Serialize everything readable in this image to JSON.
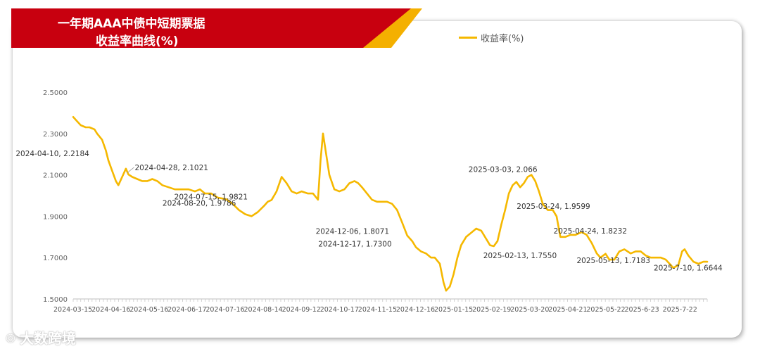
{
  "title_lines": [
    "一年期AAA中债中短期票据",
    "收益率曲线(%)"
  ],
  "watermark": {
    "icon": "logo-mark",
    "text": "大数跨境"
  },
  "colors": {
    "banner_red": "#c8000f",
    "banner_yellow": "#f4b000",
    "line": "#f5b800"
  },
  "chart_data": {
    "type": "line",
    "title": "一年期AAA中债中短期票据收益率曲线(%)",
    "ylim": [
      1.5,
      2.5
    ],
    "yticks": [
      2.5,
      2.3,
      2.1,
      1.9,
      1.7,
      1.5
    ],
    "ytick_labels": [
      "2.5000",
      "2.3000",
      "2.1000",
      "1.9000",
      "1.7000",
      "1.5000"
    ],
    "x_tick_labels": [
      "2024-03-15",
      "2024-04-16",
      "2024-05-16",
      "2024-06-17",
      "2024-07-16",
      "2024-08-14",
      "2024-09-12",
      "2024-10-17",
      "2024-11-15",
      "2024-12-16",
      "2025-01-15",
      "2025-02-19",
      "2025-03-20",
      "2025-04-21",
      "2025-05-22",
      "2025-6-23",
      "2025-7-22"
    ],
    "grid": false,
    "legend_position": "top-right",
    "series": [
      {
        "name": "收益率(%)",
        "points": [
          [
            "2024-03-15",
            2.38
          ],
          [
            "2024-03-18",
            2.36
          ],
          [
            "2024-03-21",
            2.34
          ],
          [
            "2024-03-25",
            2.33
          ],
          [
            "2024-03-28",
            2.33
          ],
          [
            "2024-04-01",
            2.32
          ],
          [
            "2024-04-03",
            2.3
          ],
          [
            "2024-04-07",
            2.27
          ],
          [
            "2024-04-10",
            2.2184
          ],
          [
            "2024-04-12",
            2.17
          ],
          [
            "2024-04-15",
            2.12
          ],
          [
            "2024-04-18",
            2.07
          ],
          [
            "2024-04-20",
            2.05
          ],
          [
            "2024-04-23",
            2.09
          ],
          [
            "2024-04-26",
            2.13
          ],
          [
            "2024-04-28",
            2.1021
          ],
          [
            "2024-05-01",
            2.09
          ],
          [
            "2024-05-05",
            2.08
          ],
          [
            "2024-05-09",
            2.07
          ],
          [
            "2024-05-13",
            2.07
          ],
          [
            "2024-05-17",
            2.08
          ],
          [
            "2024-05-21",
            2.07
          ],
          [
            "2024-05-25",
            2.05
          ],
          [
            "2024-05-30",
            2.04
          ],
          [
            "2024-06-04",
            2.03
          ],
          [
            "2024-06-10",
            2.03
          ],
          [
            "2024-06-15",
            2.03
          ],
          [
            "2024-06-20",
            2.02
          ],
          [
            "2024-06-24",
            2.03
          ],
          [
            "2024-06-28",
            2.01
          ],
          [
            "2024-07-03",
            2.01
          ],
          [
            "2024-07-08",
            1.99
          ],
          [
            "2024-07-15",
            1.9821
          ],
          [
            "2024-07-20",
            1.96
          ],
          [
            "2024-07-25",
            1.93
          ],
          [
            "2024-07-30",
            1.91
          ],
          [
            "2024-08-04",
            1.9
          ],
          [
            "2024-08-09",
            1.92
          ],
          [
            "2024-08-14",
            1.95
          ],
          [
            "2024-08-17",
            1.97
          ],
          [
            "2024-08-20",
            1.9786
          ],
          [
            "2024-08-24",
            2.02
          ],
          [
            "2024-08-28",
            2.09
          ],
          [
            "2024-09-01",
            2.06
          ],
          [
            "2024-09-05",
            2.02
          ],
          [
            "2024-09-09",
            2.01
          ],
          [
            "2024-09-13",
            2.02
          ],
          [
            "2024-09-18",
            2.01
          ],
          [
            "2024-09-22",
            2.01
          ],
          [
            "2024-09-26",
            1.98
          ],
          [
            "2024-09-28",
            2.17
          ],
          [
            "2024-09-30",
            2.3
          ],
          [
            "2024-10-02",
            2.22
          ],
          [
            "2024-10-05",
            2.1
          ],
          [
            "2024-10-09",
            2.03
          ],
          [
            "2024-10-13",
            2.02
          ],
          [
            "2024-10-17",
            2.03
          ],
          [
            "2024-10-21",
            2.06
          ],
          [
            "2024-10-25",
            2.07
          ],
          [
            "2024-10-28",
            2.06
          ],
          [
            "2024-10-31",
            2.04
          ],
          [
            "2024-11-04",
            2.01
          ],
          [
            "2024-11-08",
            1.98
          ],
          [
            "2024-11-12",
            1.97
          ],
          [
            "2024-11-16",
            1.97
          ],
          [
            "2024-11-20",
            1.97
          ],
          [
            "2024-11-24",
            1.96
          ],
          [
            "2024-11-28",
            1.93
          ],
          [
            "2024-12-02",
            1.87
          ],
          [
            "2024-12-06",
            1.8071
          ],
          [
            "2024-12-10",
            1.78
          ],
          [
            "2024-12-13",
            1.75
          ],
          [
            "2024-12-17",
            1.73
          ],
          [
            "2024-12-21",
            1.72
          ],
          [
            "2024-12-25",
            1.7
          ],
          [
            "2024-12-28",
            1.7
          ],
          [
            "2025-01-01",
            1.67
          ],
          [
            "2025-01-04",
            1.58
          ],
          [
            "2025-01-06",
            1.54
          ],
          [
            "2025-01-09",
            1.56
          ],
          [
            "2025-01-12",
            1.62
          ],
          [
            "2025-01-15",
            1.7
          ],
          [
            "2025-01-18",
            1.76
          ],
          [
            "2025-01-22",
            1.8
          ],
          [
            "2025-01-26",
            1.82
          ],
          [
            "2025-01-30",
            1.84
          ],
          [
            "2025-02-03",
            1.83
          ],
          [
            "2025-02-06",
            1.8
          ],
          [
            "2025-02-10",
            1.76
          ],
          [
            "2025-02-13",
            1.755
          ],
          [
            "2025-02-16",
            1.78
          ],
          [
            "2025-02-19",
            1.86
          ],
          [
            "2025-02-22",
            1.93
          ],
          [
            "2025-02-25",
            2.01
          ],
          [
            "2025-02-28",
            2.05
          ],
          [
            "2025-03-03",
            2.066
          ],
          [
            "2025-03-06",
            2.04
          ],
          [
            "2025-03-09",
            2.06
          ],
          [
            "2025-03-12",
            2.09
          ],
          [
            "2025-03-15",
            2.1
          ],
          [
            "2025-03-18",
            2.07
          ],
          [
            "2025-03-21",
            2.02
          ],
          [
            "2025-03-24",
            1.9599
          ],
          [
            "2025-03-28",
            1.93
          ],
          [
            "2025-04-01",
            1.93
          ],
          [
            "2025-04-04",
            1.9
          ],
          [
            "2025-04-07",
            1.8
          ],
          [
            "2025-04-11",
            1.8
          ],
          [
            "2025-04-15",
            1.81
          ],
          [
            "2025-04-19",
            1.81
          ],
          [
            "2025-04-24",
            1.8232
          ],
          [
            "2025-04-28",
            1.81
          ],
          [
            "2025-05-02",
            1.77
          ],
          [
            "2025-05-06",
            1.72
          ],
          [
            "2025-05-09",
            1.7
          ],
          [
            "2025-05-13",
            1.7183
          ],
          [
            "2025-05-16",
            1.69
          ],
          [
            "2025-05-20",
            1.69
          ],
          [
            "2025-05-24",
            1.73
          ],
          [
            "2025-05-28",
            1.74
          ],
          [
            "2025-06-02",
            1.72
          ],
          [
            "2025-06-06",
            1.73
          ],
          [
            "2025-06-10",
            1.73
          ],
          [
            "2025-06-14",
            1.71
          ],
          [
            "2025-06-18",
            1.7
          ],
          [
            "2025-06-22",
            1.7
          ],
          [
            "2025-06-26",
            1.7
          ],
          [
            "2025-06-30",
            1.69
          ],
          [
            "2025-07-03",
            1.67
          ],
          [
            "2025-07-06",
            1.65
          ],
          [
            "2025-07-10",
            1.6644
          ],
          [
            "2025-07-13",
            1.73
          ],
          [
            "2025-07-15",
            1.74
          ],
          [
            "2025-07-18",
            1.71
          ],
          [
            "2025-07-22",
            1.68
          ],
          [
            "2025-07-26",
            1.67
          ],
          [
            "2025-07-30",
            1.68
          ],
          [
            "2025-08-02",
            1.68
          ]
        ]
      }
    ],
    "annotations": [
      {
        "date": "2024-04-10",
        "value": 2.2184,
        "text": "2024-04-10, 2.2184"
      },
      {
        "date": "2024-04-28",
        "value": 2.1021,
        "text": "2024-04-28, 2.1021"
      },
      {
        "date": "2024-07-15",
        "value": 1.9821,
        "text": "2024-07-15, 1.9821"
      },
      {
        "date": "2024-08-20",
        "value": 1.9786,
        "text": "2024-08-20, 1.9786"
      },
      {
        "date": "2024-12-06",
        "value": 1.8071,
        "text": "2024-12-06, 1.8071"
      },
      {
        "date": "2024-12-17",
        "value": 1.73,
        "text": "2024-12-17, 1.7300"
      },
      {
        "date": "2025-03-03",
        "value": 2.066,
        "text": "2025-03-03, 2.066"
      },
      {
        "date": "2025-03-24",
        "value": 1.9599,
        "text": "2025-03-24, 1.9599"
      },
      {
        "date": "2025-02-13",
        "value": 1.755,
        "text": "2025-02-13, 1.7550"
      },
      {
        "date": "2025-04-24",
        "value": 1.8232,
        "text": "2025-04-24, 1.8232"
      },
      {
        "date": "2025-05-13",
        "value": 1.7183,
        "text": "2025-05-13, 1.7183"
      },
      {
        "date": "2025-07-10",
        "value": 1.6644,
        "text": "2025-7-10, 1.6644"
      }
    ]
  }
}
